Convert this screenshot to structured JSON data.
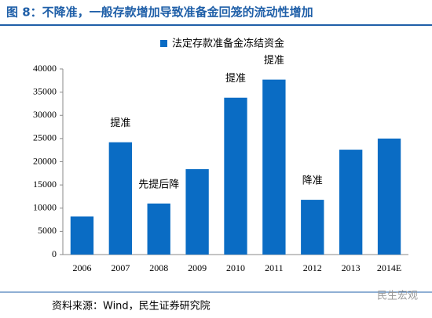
{
  "chart_data": {
    "type": "bar",
    "title": "图 8：不降准，一般存款增加导致准备金回笼的流动性增加",
    "legend": "法定存款准备金冻结资金",
    "categories": [
      "2006",
      "2007",
      "2008",
      "2009",
      "2010",
      "2011",
      "2012",
      "2013",
      "2014E"
    ],
    "values": [
      8200,
      24200,
      11000,
      18400,
      33800,
      37700,
      11800,
      22600,
      25000
    ],
    "color": "#0a6cc4",
    "ylim": [
      0,
      40000
    ],
    "yticks": [
      0,
      5000,
      10000,
      15000,
      20000,
      25000,
      30000,
      35000,
      40000
    ],
    "annotations": [
      {
        "category": "2007",
        "text": "提准"
      },
      {
        "category": "2008",
        "text": "先提后降"
      },
      {
        "category": "2010",
        "text": "提准"
      },
      {
        "category": "2011",
        "text": "提准"
      },
      {
        "category": "2012",
        "text": "降准"
      }
    ],
    "source": "资料来源：Wind，民生证券研究院",
    "watermark": "民生宏观"
  }
}
